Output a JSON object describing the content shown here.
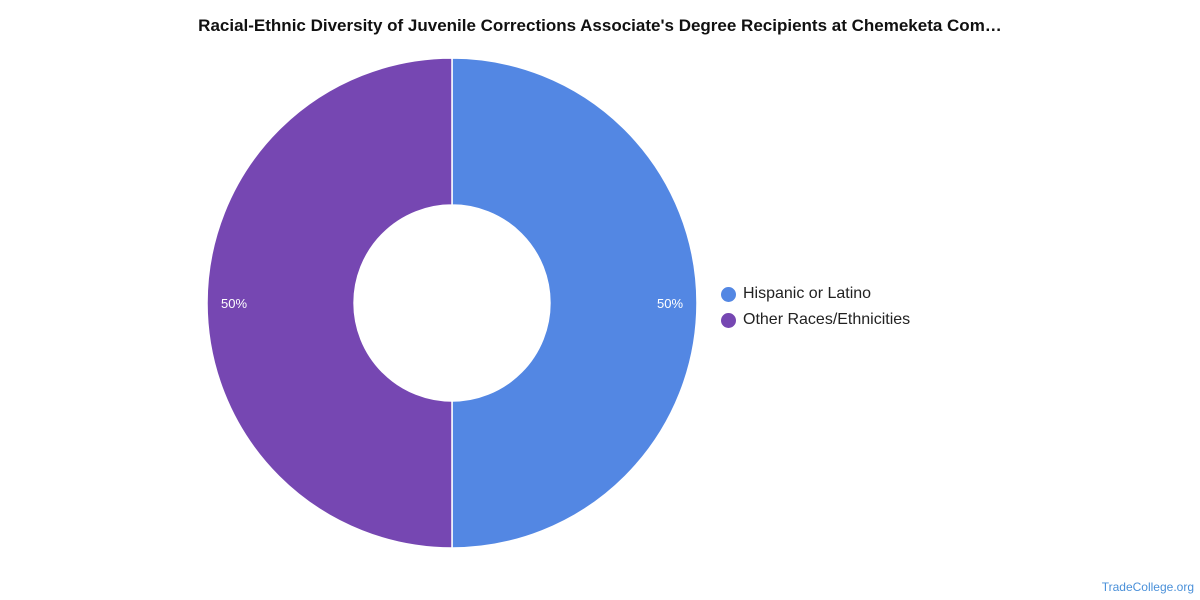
{
  "chart_data": {
    "type": "pie",
    "title": "Racial-Ethnic Diversity of Juvenile Corrections Associate's Degree Recipients at Chemeketa Com…",
    "series": [
      {
        "name": "Hispanic or Latino",
        "value": 50,
        "label": "50%",
        "color": "#5387e3"
      },
      {
        "name": "Other Races/Ethnicities",
        "value": 50,
        "label": "50%",
        "color": "#7647b2"
      }
    ],
    "legend_placement": "right"
  },
  "credit": "TradeCollege.org"
}
